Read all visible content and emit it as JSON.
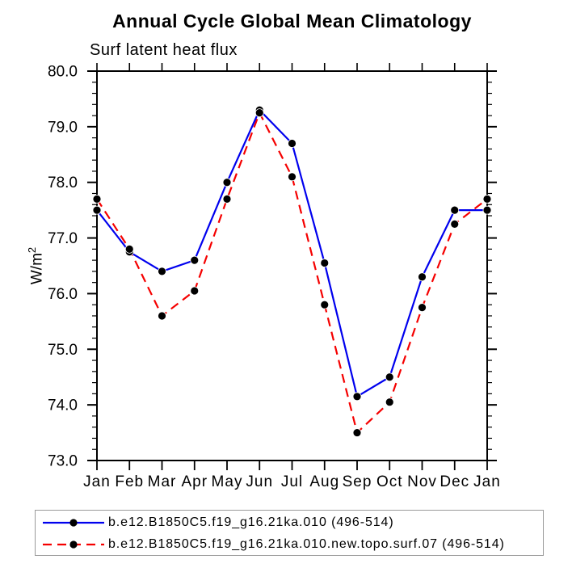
{
  "title": "Annual Cycle Global Mean Climatology",
  "subtitle": "Surf latent heat flux",
  "y_axis": {
    "label_base": "W/m",
    "label_exponent": "2"
  },
  "chart_data": {
    "type": "line",
    "title": "Annual Cycle Global Mean Climatology",
    "subtitle": "Surf latent heat flux",
    "xlabel": "",
    "ylabel": "W/m²",
    "categories": [
      "Jan",
      "Feb",
      "Mar",
      "Apr",
      "May",
      "Jun",
      "Jul",
      "Aug",
      "Sep",
      "Oct",
      "Nov",
      "Dec",
      "Jan"
    ],
    "series": [
      {
        "name": "b.e12.B1850C5.f19_g16.21ka.010 (496-514)",
        "color": "#0000ee",
        "line_style": "solid",
        "marker": "filled-circle",
        "marker_color": "#000000",
        "values": [
          77.5,
          76.75,
          76.4,
          76.6,
          78.0,
          79.3,
          78.7,
          76.55,
          74.15,
          74.5,
          76.3,
          77.5,
          77.5
        ]
      },
      {
        "name": "b.e12.B1850C5.f19_g16.21ka.010.new.topo.surf.07 (496-514)",
        "color": "#f50000",
        "line_style": "dashed",
        "marker": "filled-circle",
        "marker_color": "#000000",
        "values": [
          77.7,
          76.8,
          75.6,
          76.05,
          77.7,
          79.25,
          78.1,
          75.8,
          73.5,
          74.05,
          75.75,
          77.25,
          77.7
        ]
      }
    ],
    "ylim": [
      73.0,
      80.0
    ],
    "ytick_major_step": 1.0,
    "ytick_minor_step": 0.2,
    "ytick_labels": [
      "80.0",
      "79.0",
      "78.0",
      "77.0",
      "76.0",
      "75.0",
      "74.0",
      "73.0"
    ],
    "grid": false,
    "legend_position": "bottom-left"
  }
}
